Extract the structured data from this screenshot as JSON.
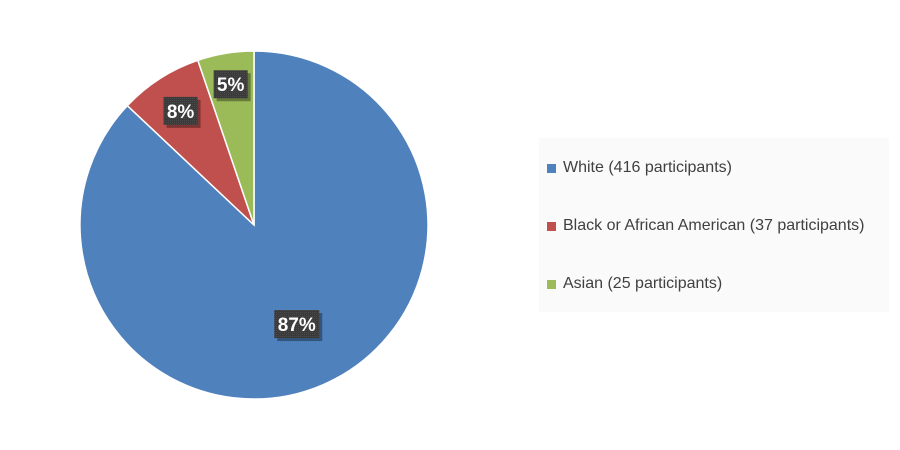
{
  "chart_data": {
    "type": "pie",
    "title": "",
    "slices": [
      {
        "label": "White (416 participants)",
        "value": 416,
        "percent_label": "87%",
        "color": "#4f81bd"
      },
      {
        "label": "Black or African American (37 participants)",
        "value": 37,
        "percent_label": "8%",
        "color": "#c0504d"
      },
      {
        "label": "Asian (25 participants)",
        "value": 25,
        "percent_label": "5%",
        "color": "#9bbb59"
      }
    ],
    "legend_position": "right"
  }
}
